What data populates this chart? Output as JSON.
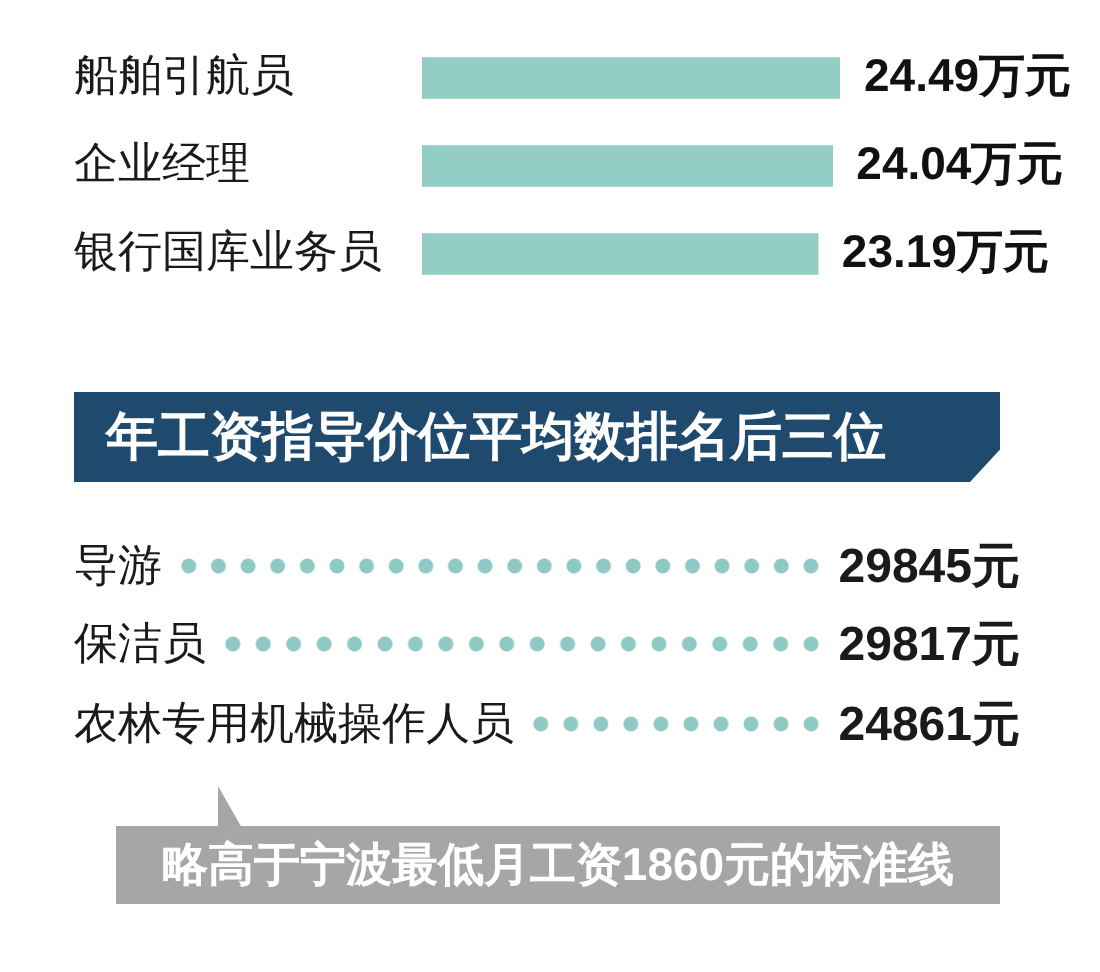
{
  "chart_data": [
    {
      "type": "bar",
      "orientation": "horizontal",
      "categories": [
        "船舶引航员",
        "企业经理",
        "银行国库业务员"
      ],
      "values": [
        24.49,
        24.04,
        23.19
      ],
      "value_labels": [
        "24.49万元",
        "24.04万元",
        "23.19万元"
      ],
      "color": "#93cbc5"
    },
    {
      "type": "other",
      "title": "年工资指导价位平均数排名后三位",
      "categories": [
        "导游",
        "保洁员",
        "农林专用机械操作人员"
      ],
      "value_labels": [
        "29845元",
        "29817元",
        "24861元"
      ],
      "annotations": [
        "略高于宁波最低月工资1860元的标准线"
      ]
    }
  ]
}
